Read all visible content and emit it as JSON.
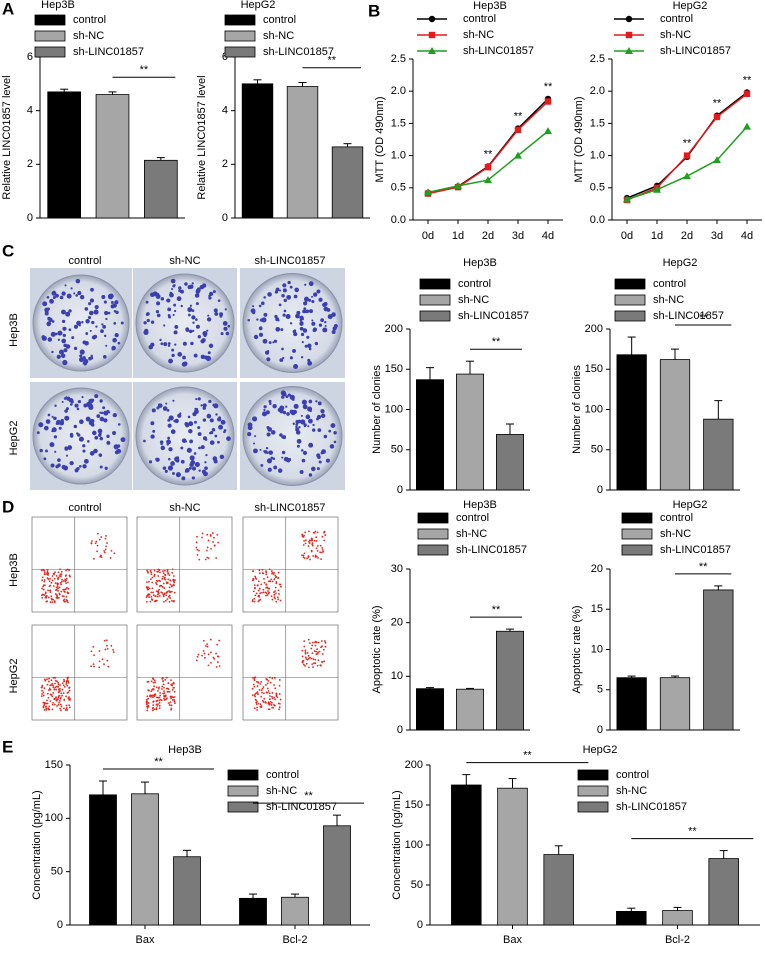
{
  "panel_labels": [
    "A",
    "B",
    "C",
    "D",
    "E"
  ],
  "image_panels": {
    "colony": {
      "columns": [
        "control",
        "sh-NC",
        "sh-LINC01857"
      ],
      "rows": [
        "Hep3B",
        "HepG2"
      ]
    },
    "flow": {
      "columns": [
        "control",
        "sh-NC",
        "sh-LINC01857"
      ],
      "rows": [
        "Hep3B",
        "HepG2"
      ]
    }
  },
  "chart_data": [
    {
      "type": "bar",
      "title": "Hep3B",
      "ylabel": "Relative LINC01857 level",
      "categories": [
        "control",
        "sh-NC",
        "sh-LINC01857"
      ],
      "values": [
        4.7,
        4.6,
        2.15
      ],
      "errors": [
        0.1,
        0.1,
        0.1
      ],
      "colors": [
        "#000000",
        "#a6a6a6",
        "#7a7a7a"
      ],
      "ylim": [
        0,
        6
      ],
      "yticks": [
        0,
        2,
        4,
        6
      ],
      "annotations": [
        "**"
      ]
    },
    {
      "type": "bar",
      "title": "HepG2",
      "ylabel": "Relative LINC01857 level",
      "categories": [
        "control",
        "sh-NC",
        "sh-LINC01857"
      ],
      "values": [
        5.0,
        4.9,
        2.65
      ],
      "errors": [
        0.15,
        0.15,
        0.12
      ],
      "colors": [
        "#000000",
        "#a6a6a6",
        "#7a7a7a"
      ],
      "ylim": [
        0,
        6
      ],
      "yticks": [
        0,
        2,
        4,
        6
      ],
      "annotations": [
        "**"
      ]
    },
    {
      "type": "line",
      "title": "Hep3B",
      "ylabel": "MTT (OD 490nm)",
      "categories": [
        "0d",
        "1d",
        "2d",
        "3d",
        "4d"
      ],
      "series": [
        {
          "name": "control",
          "color": "#000000",
          "marker": "circle",
          "values": [
            0.42,
            0.52,
            0.83,
            1.42,
            1.88
          ]
        },
        {
          "name": "sh-NC",
          "color": "#e41a1c",
          "marker": "square",
          "values": [
            0.41,
            0.51,
            0.82,
            1.4,
            1.84
          ]
        },
        {
          "name": "sh-LINC01857",
          "color": "#1f9e1f",
          "marker": "triangle",
          "values": [
            0.43,
            0.53,
            0.62,
            1.0,
            1.38
          ]
        }
      ],
      "ylim": [
        0,
        2.5
      ],
      "yticks": [
        {
          "value": 0,
          "label": "0.0"
        },
        {
          "value": 0.5,
          "label": "0.5"
        },
        {
          "value": 1,
          "label": "1.0"
        },
        {
          "value": 1.5,
          "label": "1.5"
        },
        {
          "value": 2,
          "label": "2.0"
        },
        {
          "value": 2.5,
          "label": "2.5"
        }
      ],
      "annotations": [
        "**",
        "**",
        "**"
      ]
    },
    {
      "type": "line",
      "title": "HepG2",
      "ylabel": "MTT (OD 490nm)",
      "categories": [
        "0d",
        "1d",
        "2d",
        "3d",
        "4d"
      ],
      "series": [
        {
          "name": "control",
          "color": "#000000",
          "marker": "circle",
          "values": [
            0.34,
            0.53,
            0.98,
            1.62,
            1.98
          ]
        },
        {
          "name": "sh-NC",
          "color": "#e41a1c",
          "marker": "square",
          "values": [
            0.31,
            0.5,
            1.0,
            1.6,
            1.96
          ]
        },
        {
          "name": "sh-LINC01857",
          "color": "#1f9e1f",
          "marker": "triangle",
          "values": [
            0.32,
            0.47,
            0.68,
            0.93,
            1.45
          ]
        }
      ],
      "ylim": [
        0,
        2.5
      ],
      "yticks": [
        {
          "value": 0,
          "label": "0.0"
        },
        {
          "value": 0.5,
          "label": "0.5"
        },
        {
          "value": 1,
          "label": "1.0"
        },
        {
          "value": 1.5,
          "label": "1.5"
        },
        {
          "value": 2,
          "label": "2.0"
        },
        {
          "value": 2.5,
          "label": "2.5"
        }
      ],
      "annotations": [
        "**",
        "**",
        "**"
      ]
    },
    {
      "type": "bar",
      "title": "Hep3B",
      "ylabel": "Number of clonies",
      "categories": [
        "control",
        "sh-NC",
        "sh-LINC01857"
      ],
      "values": [
        137,
        144,
        69
      ],
      "errors": [
        15,
        16,
        13
      ],
      "colors": [
        "#000000",
        "#a6a6a6",
        "#7a7a7a"
      ],
      "ylim": [
        0,
        200
      ],
      "yticks": [
        0,
        50,
        100,
        150,
        200
      ],
      "annotations": [
        "**"
      ]
    },
    {
      "type": "bar",
      "title": "HepG2",
      "ylabel": "Number of clonies",
      "categories": [
        "control",
        "sh-NC",
        "sh-LINC01857"
      ],
      "values": [
        168,
        162,
        88
      ],
      "errors": [
        22,
        13,
        23
      ],
      "colors": [
        "#000000",
        "#a6a6a6",
        "#7a7a7a"
      ],
      "ylim": [
        0,
        200
      ],
      "yticks": [
        0,
        50,
        100,
        150,
        200
      ],
      "annotations": [
        "**"
      ]
    },
    {
      "type": "bar",
      "title": "Hep3B",
      "ylabel": "Apoptotic rate (%)",
      "categories": [
        "control",
        "sh-NC",
        "sh-LINC01857"
      ],
      "values": [
        7.7,
        7.6,
        18.4
      ],
      "errors": [
        0.2,
        0.15,
        0.4
      ],
      "colors": [
        "#000000",
        "#a6a6a6",
        "#7a7a7a"
      ],
      "ylim": [
        0,
        30
      ],
      "yticks": [
        0,
        10,
        20,
        30
      ],
      "annotations": [
        "**"
      ]
    },
    {
      "type": "bar",
      "title": "HepG2",
      "ylabel": "Apoptotic rate (%)",
      "categories": [
        "control",
        "sh-NC",
        "sh-LINC01857"
      ],
      "values": [
        6.5,
        6.5,
        17.4
      ],
      "errors": [
        0.2,
        0.2,
        0.5
      ],
      "colors": [
        "#000000",
        "#a6a6a6",
        "#7a7a7a"
      ],
      "ylim": [
        0,
        20
      ],
      "yticks": [
        0,
        5,
        10,
        15,
        20
      ],
      "annotations": [
        "**"
      ]
    },
    {
      "type": "grouped_bar",
      "title": "Hep3B",
      "ylabel": "Concentration (pg/mL)",
      "categories": [
        "Bax",
        "Bcl-2"
      ],
      "series": [
        {
          "name": "control",
          "color": "#000000",
          "values": [
            122,
            25
          ],
          "errors": [
            13,
            4
          ]
        },
        {
          "name": "sh-NC",
          "color": "#a6a6a6",
          "values": [
            123,
            26
          ],
          "errors": [
            11,
            3
          ]
        },
        {
          "name": "sh-LINC01857",
          "color": "#7a7a7a",
          "values": [
            64,
            93
          ],
          "errors": [
            6,
            10
          ]
        }
      ],
      "ylim": [
        0,
        150
      ],
      "yticks": [
        0,
        50,
        100,
        150
      ],
      "annotations": [
        "**",
        "**"
      ]
    },
    {
      "type": "grouped_bar",
      "title": "HepG2",
      "ylabel": "Concentration (pg/mL)",
      "categories": [
        "Bax",
        "Bcl-2"
      ],
      "series": [
        {
          "name": "control",
          "color": "#000000",
          "values": [
            175,
            17
          ],
          "errors": [
            13,
            4
          ]
        },
        {
          "name": "sh-NC",
          "color": "#a6a6a6",
          "values": [
            171,
            18
          ],
          "errors": [
            12,
            4
          ]
        },
        {
          "name": "sh-LINC01857",
          "color": "#7a7a7a",
          "values": [
            88,
            83
          ],
          "errors": [
            11,
            10
          ]
        }
      ],
      "ylim": [
        0,
        200
      ],
      "yticks": [
        0,
        50,
        100,
        150,
        200
      ],
      "annotations": [
        "**",
        "**"
      ]
    }
  ]
}
